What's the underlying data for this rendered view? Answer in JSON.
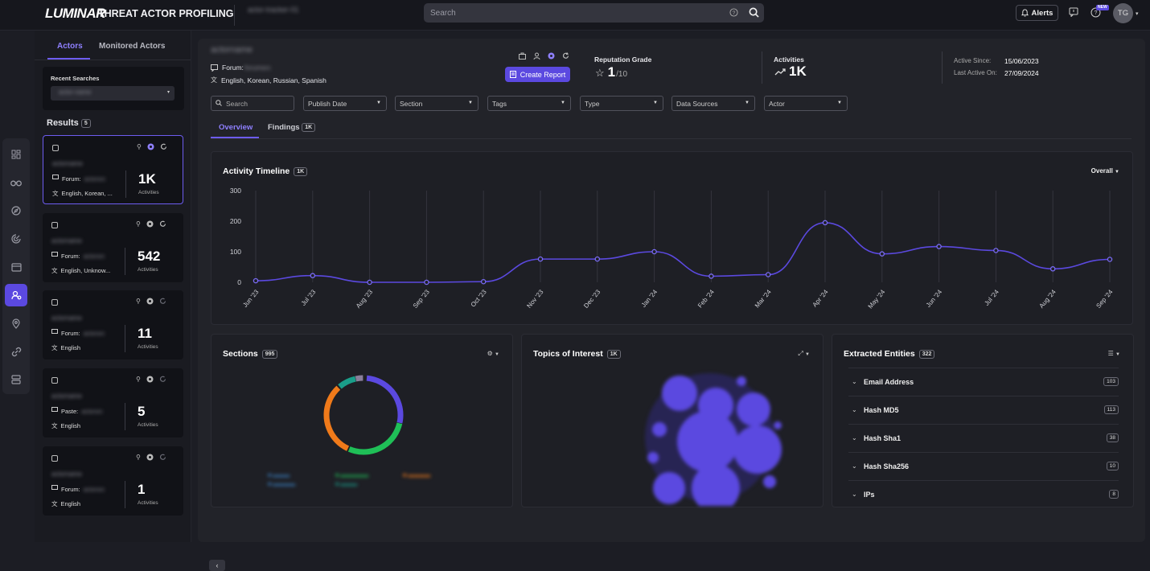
{
  "app": {
    "logo": "LUMINAR",
    "title": "THREAT ACTOR PROFILING",
    "context_blur": "actor-tracker-01"
  },
  "topbar": {
    "search_placeholder": "Search",
    "alerts_label": "Alerts",
    "new_badge": "NEW",
    "avatar_initials": "TG"
  },
  "sidebar_rail": {
    "icons": [
      "dashboard-icon",
      "binoculars-icon",
      "compass-icon",
      "radar-icon",
      "card-icon",
      "actor-profile-icon",
      "location-pin-icon",
      "link-icon",
      "server-icon"
    ],
    "active": "actor-profile-icon"
  },
  "left_panel": {
    "tabs": [
      "Actors",
      "Monitored Actors"
    ],
    "recent_searches_label": "Recent Searches",
    "recent_searches_value": "actor-name",
    "results_label": "Results",
    "results_count": "5",
    "cards": [
      {
        "name": "actorname",
        "source": "Forum:",
        "source_value": "actorsrc",
        "languages": "English, Korean, ...",
        "count": "1K",
        "count_label": "Activities",
        "selected": true
      },
      {
        "name": "actorname",
        "source": "Forum:",
        "source_value": "actorsrc",
        "languages": "English, Unknow...",
        "count": "542",
        "count_label": "Activities",
        "selected": false
      },
      {
        "name": "actorname",
        "source": "Forum:",
        "source_value": "actorsrc",
        "languages": "English",
        "count": "11",
        "count_label": "Activities",
        "selected": false
      },
      {
        "name": "actorname",
        "source": "Paste:",
        "source_value": "actorsrc",
        "languages": "English",
        "count": "5",
        "count_label": "Activities",
        "selected": false
      },
      {
        "name": "actorname",
        "source": "Forum:",
        "source_value": "actorsrc",
        "languages": "English",
        "count": "1",
        "count_label": "Activities",
        "selected": false
      }
    ]
  },
  "profile": {
    "name": "actorname",
    "forum_label": "Forum:",
    "forum_value": "forumsrc",
    "languages": "English, Korean, Russian, Spanish",
    "create_report": "Create Report",
    "reputation_label": "Reputation Grade",
    "reputation_value": "1",
    "reputation_max": "/10",
    "activities_label": "Activities",
    "activities_value": "1K",
    "active_since_label": "Active Since:",
    "active_since": "15/06/2023",
    "last_active_label": "Last Active On:",
    "last_active": "27/09/2024"
  },
  "filters": {
    "search_placeholder": "Search",
    "dropdowns": [
      "Publish Date",
      "Section",
      "Tags",
      "Type",
      "Data Sources",
      "Actor"
    ]
  },
  "subtabs": {
    "overview": "Overview",
    "findings": "Findings",
    "findings_count": "1K"
  },
  "timeline": {
    "title": "Activity Timeline",
    "badge": "1K",
    "scope": "Overall"
  },
  "chart_data": {
    "type": "line",
    "title": "Activity Timeline",
    "x": [
      "Jun '23",
      "Jul '23",
      "Aug '23",
      "Sep '23",
      "Oct '23",
      "Nov '23",
      "Dec '23",
      "Jan '24",
      "Feb '24",
      "Mar '24",
      "Apr '24",
      "May '24",
      "Jun '24",
      "Jul '24",
      "Aug '24",
      "Sep '24"
    ],
    "series": [
      {
        "values": [
          5,
          22,
          0,
          0,
          2,
          76,
          76,
          100,
          20,
          25,
          195,
          93,
          117,
          104,
          44,
          75
        ]
      }
    ],
    "yticks": [
      300,
      200,
      100,
      0
    ],
    "ylim": [
      0,
      300
    ],
    "color": "#5b49e0",
    "grid": "vertical"
  },
  "sections": {
    "title": "Sections",
    "count": "995"
  },
  "topics": {
    "title": "Topics of Interest",
    "count": "1K"
  },
  "entities": {
    "title": "Extracted Entities",
    "count": "322",
    "rows": [
      {
        "label": "Email Address",
        "count": "103"
      },
      {
        "label": "Hash MD5",
        "count": "113"
      },
      {
        "label": "Hash Sha1",
        "count": "38"
      },
      {
        "label": "Hash Sha256",
        "count": "10"
      },
      {
        "label": "IPs",
        "count": "8"
      }
    ]
  }
}
